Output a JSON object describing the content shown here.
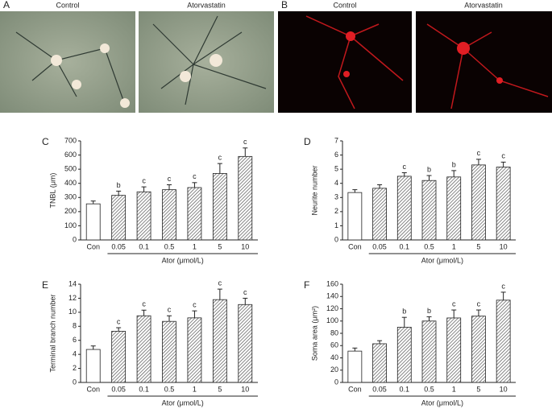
{
  "panels": [
    {
      "label": "A",
      "captions": [
        "Control",
        "Atorvastatin"
      ]
    },
    {
      "label": "B",
      "captions": [
        "Control",
        "Atorvastatin"
      ]
    }
  ],
  "chart_data": [
    {
      "type": "bar",
      "panel": "C",
      "ylabel": "TNBL (μm)",
      "xlabel": "Ator (μmol/L)",
      "categories": [
        "Con",
        "0.05",
        "0.1",
        "0.5",
        "1",
        "5",
        "10"
      ],
      "values": [
        255,
        315,
        340,
        355,
        370,
        470,
        590
      ],
      "errors": [
        20,
        30,
        35,
        35,
        35,
        70,
        60
      ],
      "annotations": [
        null,
        "b",
        "c",
        "c",
        "c",
        "c",
        "c"
      ],
      "ylim": [
        0,
        700
      ],
      "yticks": [
        0,
        100,
        200,
        300,
        400,
        500,
        600,
        700
      ]
    },
    {
      "type": "bar",
      "panel": "D",
      "ylabel": "Neurite number",
      "xlabel": "Ator (μmol/L)",
      "categories": [
        "Con",
        "0.05",
        "0.1",
        "0.5",
        "1",
        "5",
        "10"
      ],
      "values": [
        3.35,
        3.65,
        4.5,
        4.2,
        4.45,
        5.3,
        5.15
      ],
      "errors": [
        0.2,
        0.25,
        0.25,
        0.35,
        0.45,
        0.4,
        0.35
      ],
      "annotations": [
        null,
        null,
        "c",
        "b",
        "b",
        "c",
        "c"
      ],
      "ylim": [
        0,
        7
      ],
      "yticks": [
        0,
        1,
        2,
        3,
        4,
        5,
        6,
        7
      ]
    },
    {
      "type": "bar",
      "panel": "E",
      "ylabel": "Terminal branch number",
      "xlabel": "Ator (μmol/L)",
      "categories": [
        "Con",
        "0.05",
        "0.1",
        "0.5",
        "1",
        "5",
        "10"
      ],
      "values": [
        4.7,
        7.3,
        9.5,
        8.7,
        9.2,
        11.8,
        11.1
      ],
      "errors": [
        0.5,
        0.5,
        0.8,
        0.8,
        1.0,
        1.5,
        0.9
      ],
      "annotations": [
        null,
        "c",
        "c",
        "c",
        "c",
        "c",
        "c"
      ],
      "ylim": [
        0,
        14
      ],
      "yticks": [
        0,
        2,
        4,
        6,
        8,
        10,
        12,
        14
      ]
    },
    {
      "type": "bar",
      "panel": "F",
      "ylabel": "Soma area (μm²)",
      "xlabel": "Ator (μmol/L)",
      "categories": [
        "Con",
        "0.05",
        "0.1",
        "0.5",
        "1",
        "5",
        "10"
      ],
      "values": [
        51,
        63,
        90,
        100,
        105,
        108,
        134
      ],
      "errors": [
        5,
        5,
        16,
        7,
        13,
        10,
        13
      ],
      "annotations": [
        null,
        null,
        "b",
        "b",
        "c",
        "c",
        "c"
      ],
      "ylim": [
        0,
        160
      ],
      "yticks": [
        0,
        20,
        40,
        60,
        80,
        100,
        120,
        140,
        160
      ]
    }
  ]
}
